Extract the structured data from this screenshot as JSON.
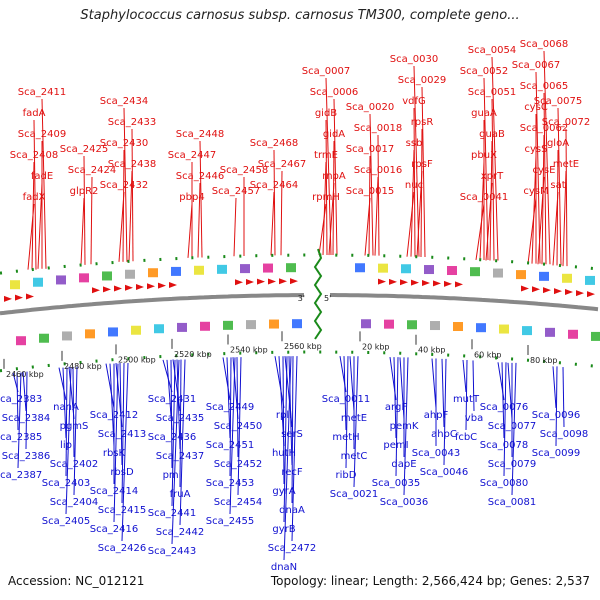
{
  "title": "Staphylococcus carnosus subsp. carnosus TM300, complete geno...",
  "accession": "Accession: NC_012121",
  "topology": "Topology: linear; Length: 2,566,424 bp; Genes: 2,537",
  "colors": {
    "forward": "#e01010",
    "reverse": "#1010d0",
    "backbone": "#888888",
    "tick": "#1a8a1a"
  },
  "ends": {
    "left": "3'",
    "right": "5'"
  },
  "scale_labels": [
    "2460 kbp",
    "2480 kbp",
    "2500 kbp",
    "2520 kbp",
    "2540 kbp",
    "2560 kbp",
    "20 kbp",
    "40 kbp",
    "60 kbp",
    "80 kbp"
  ],
  "top_labels": [
    "fadX",
    "fadE",
    "Sca_2408",
    "Sca_2409",
    "fadA",
    "Sca_2411",
    "glpR2",
    "Sca_2424",
    "Sca_2425",
    "Sca_2432",
    "Sca_2438",
    "Sca_2430",
    "Sca_2433",
    "Sca_2434",
    "pbp4",
    "Sca_2446",
    "Sca_2447",
    "Sca_2448",
    "Sca_2457",
    "Sca_2458",
    "Sca_2464",
    "Sca_2467",
    "Sca_2468",
    "rpmH",
    "rnpA",
    "trmE",
    "gidA",
    "gidB",
    "Sca_0006",
    "Sca_0007",
    "Sca_0015",
    "Sca_0016",
    "Sca_0017",
    "Sca_0018",
    "Sca_0020",
    "nuc",
    "rpsF",
    "ssb",
    "rpsR",
    "vdfG",
    "Sca_0029",
    "Sca_0030",
    "Sca_0041",
    "xprT",
    "pbuX",
    "guaB",
    "guaA",
    "Sca_0051",
    "Sca_0052",
    "Sca_0054",
    "cysM",
    "cysE",
    "cysS",
    "Sca_0062",
    "cysC",
    "Sca_0065",
    "Sca_0067",
    "Sca_0068",
    "sat",
    "metE",
    "gloA",
    "Sca_0072",
    "Sca_0075"
  ],
  "bottom_labels": [
    "Sca_2383",
    "Sca_2384",
    "Sca_2385",
    "Sca_2386",
    "Sca_2387",
    "nanA",
    "pgmS",
    "lip",
    "Sca_2402",
    "Sca_2403",
    "Sca_2404",
    "Sca_2405",
    "Sca_2412",
    "Sca_2413",
    "rbsK",
    "rbsD",
    "Sca_2414",
    "Sca_2415",
    "Sca_2416",
    "Sca_2426",
    "Sca_2431",
    "Sca_2435",
    "Sca_2436",
    "Sca_2437",
    "pmi",
    "fruA",
    "Sca_2441",
    "Sca_2442",
    "Sca_2443",
    "Sca_2449",
    "Sca_2450",
    "Sca_2451",
    "Sca_2452",
    "Sca_2453",
    "Sca_2454",
    "Sca_2455",
    "rplI",
    "serS",
    "hutH",
    "recF",
    "gyrA",
    "dnaA",
    "gyrB",
    "Sca_2472",
    "dnaN",
    "Sca_0011",
    "metE",
    "metH",
    "metC",
    "ribD",
    "Sca_0021",
    "argF",
    "pemK",
    "pemI",
    "dapE",
    "Sca_0035",
    "Sca_0036",
    "ahpF",
    "ahpC",
    "Sca_0043",
    "Sca_0046",
    "mutT",
    "vba",
    "fcbC",
    "Sca_0076",
    "Sca_0077",
    "Sca_0078",
    "Sca_0079",
    "Sca_0080",
    "Sca_0081",
    "Sca_0096",
    "Sca_0098",
    "Sca_0099"
  ]
}
